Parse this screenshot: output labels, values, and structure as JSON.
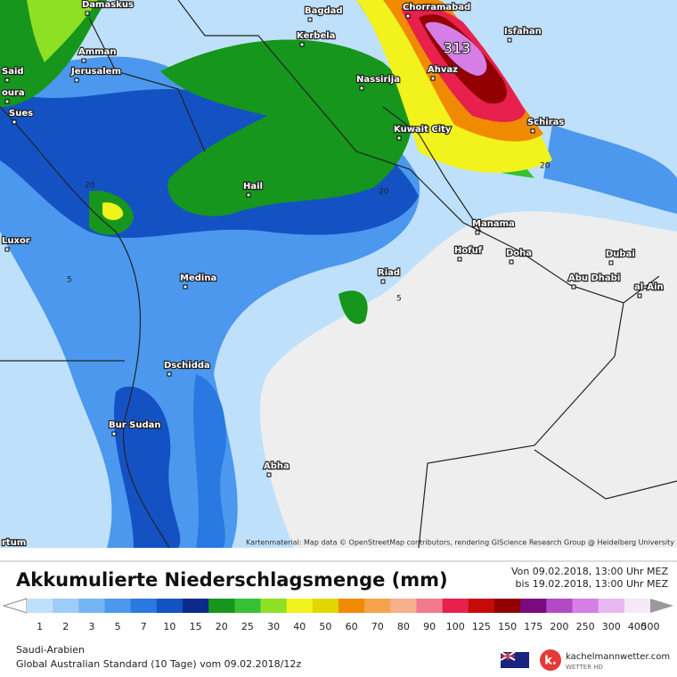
{
  "map": {
    "cities": [
      "Damaskus",
      "Bagdad",
      "Chorramabad",
      "Isfahan",
      "Amman",
      "Jerusalem",
      "Kerbela",
      "Said",
      "oura",
      "Sues",
      "Ahvaz",
      "Nassirija",
      "Kuwait City",
      "Schiras",
      "Hail",
      "Manama",
      "Hofuf",
      "Doha",
      "Dubai",
      "Luxor",
      "Riad",
      "Abu Dhabi",
      "Medina",
      "al-Ain",
      "Dschidda",
      "Bur Sudan",
      "Abha",
      "rtum"
    ],
    "max_value": 313,
    "contour_labels": [
      20,
      20,
      20,
      5,
      5
    ],
    "credit": "Kartenmaterial: Map data © OpenStreetMap contributors, rendering GIScience Research Group @ Heidelberg University"
  },
  "header": {
    "title": "Akkumulierte Niederschlagsmenge (mm)",
    "from": "Von 09.02.2018, 13:00 Uhr MEZ",
    "to": "bis 19.02.2018, 13:00 Uhr MEZ"
  },
  "legend": {
    "levels": [
      1,
      2,
      3,
      5,
      7,
      10,
      15,
      20,
      25,
      30,
      40,
      50,
      60,
      70,
      80,
      90,
      100,
      125,
      150,
      175,
      200,
      250,
      300,
      400,
      500
    ],
    "colors": [
      "#bfe0fa",
      "#9ccdf6",
      "#74b6f2",
      "#4b98ee",
      "#2a78e2",
      "#1452c4",
      "#0c2a8c",
      "#16961c",
      "#36c034",
      "#8ee024",
      "#f2f21c",
      "#e2d600",
      "#f08a00",
      "#f5a24c",
      "#f7b08c",
      "#f27a8c",
      "#e8204e",
      "#c80a0a",
      "#920000",
      "#7a0a80",
      "#b24ac6",
      "#d47ee6",
      "#e8b6f0",
      "#f6e8f6"
    ]
  },
  "footer": {
    "region": "Saudi-Arabien",
    "model": "Global Australian Standard (10 Tage) vom 09.02.2018/12z",
    "brand": "kachelmannwetter.com",
    "brand_sub": "WETTER HD"
  }
}
